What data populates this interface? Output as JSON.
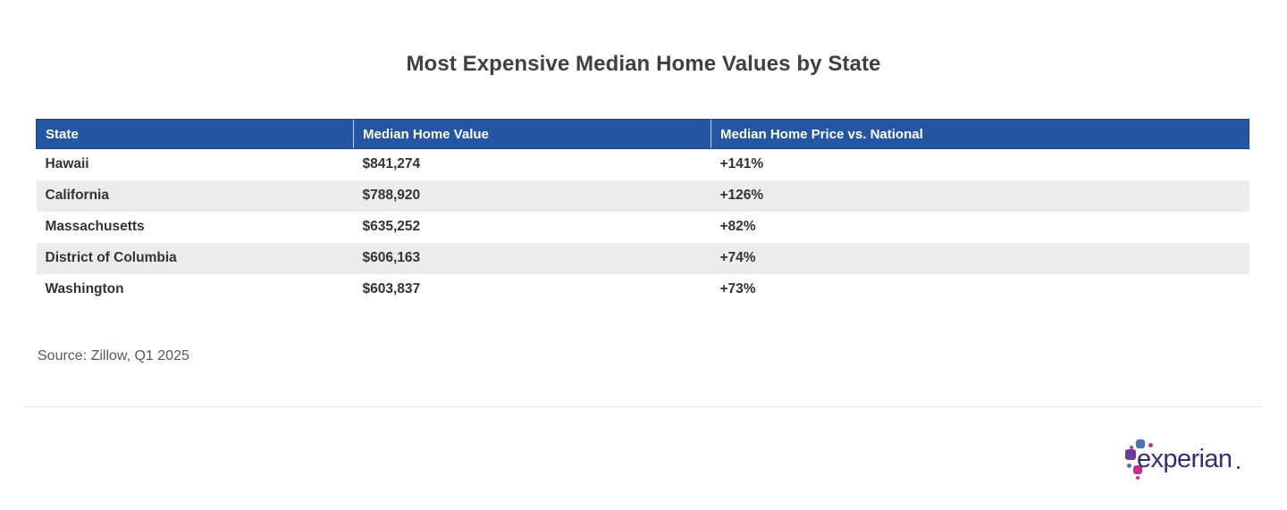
{
  "page": {
    "title": "Most Expensive Median Home Values by State",
    "source_note": "Source: Zillow, Q1 2025"
  },
  "table": {
    "columns": [
      "State",
      "Median Home Value",
      "Median Home Price vs. National"
    ],
    "rows": [
      {
        "state": "Hawaii",
        "median_home_value": "$841,274",
        "vs_national": "+141%"
      },
      {
        "state": "California",
        "median_home_value": "$788,920",
        "vs_national": "+126%"
      },
      {
        "state": "Massachusetts",
        "median_home_value": "$635,252",
        "vs_national": "+82%"
      },
      {
        "state": "District of Columbia",
        "median_home_value": "$606,163",
        "vs_national": "+74%"
      },
      {
        "state": "Washington",
        "median_home_value": "$603,837",
        "vs_national": "+73%"
      }
    ]
  },
  "logo": {
    "wordmark": "experian"
  },
  "colors": {
    "header_background": "#2456A3",
    "header_text": "#FFFFFF",
    "row_alternate": "#ECECEC",
    "cell_text": "#333333",
    "title_text": "#404040",
    "source_text": "#595959",
    "logo_wordmark": "#2E3077",
    "logo_blue": "#4973B2",
    "logo_purple": "#6C3D94",
    "logo_magenta": "#BF3488"
  },
  "chart_data": {
    "type": "table",
    "title": "Most Expensive Median Home Values by State",
    "columns": [
      "State",
      "Median Home Value",
      "Median Home Price vs. National"
    ],
    "rows": [
      [
        "Hawaii",
        "$841,274",
        "+141%"
      ],
      [
        "California",
        "$788,920",
        "+126%"
      ],
      [
        "Massachusetts",
        "$635,252",
        "+82%"
      ],
      [
        "District of Columbia",
        "$606,163",
        "+74%"
      ],
      [
        "Washington",
        "$603,837",
        "+73%"
      ]
    ],
    "median_home_values_usd": [
      841274,
      788920,
      635252,
      606163,
      603837
    ],
    "vs_national_percent": [
      141,
      126,
      82,
      74,
      73
    ],
    "source": "Source: Zillow, Q1 2025",
    "layout": {
      "header_style": "solid-blue",
      "zebra_striping": true,
      "legend": "none",
      "grid": "off"
    }
  }
}
